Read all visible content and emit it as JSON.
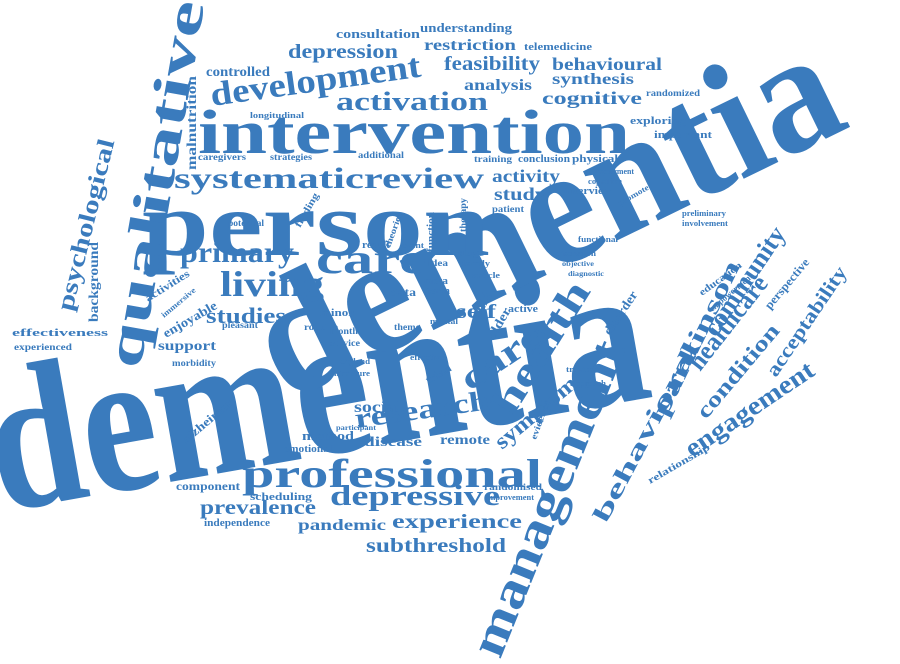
{
  "theme": {
    "word_color": "#3a7bbd",
    "background": "#ffffff"
  },
  "words": [
    "dementia",
    "dementia",
    "person",
    "intervention",
    "management",
    "qualitative",
    "professional",
    "health",
    "carer",
    "care",
    "living",
    "development",
    "systematicreview",
    "activation",
    "depressive",
    "primary",
    "research",
    "community",
    "healthcare",
    "parkinson",
    "engagement",
    "behavioral",
    "symptom",
    "psychological",
    "studies",
    "acceptability",
    "condition",
    "prevalence",
    "experience",
    "subthreshold",
    "pandemic",
    "depression",
    "feasibility",
    "restriction",
    "consultation",
    "understanding",
    "telemedicine",
    "behavioural",
    "synthesis",
    "cognitive",
    "analysis",
    "activity",
    "study",
    "self",
    "malnutrition",
    "controlled",
    "background",
    "effectiveness",
    "support",
    "enjoyable",
    "social",
    "method",
    "disease",
    "remote",
    "component",
    "alzheimer",
    "scheduling",
    "independence",
    "activities",
    "exploring",
    "important",
    "randomized",
    "interview",
    "physical",
    "conclusion",
    "training",
    "additional",
    "strategies",
    "caregivers",
    "longitudinal",
    "emotional",
    "morbidity",
    "experienced",
    "immersive",
    "pleasant",
    "potential",
    "finding",
    "minor",
    "routine",
    "result",
    "data",
    "mild",
    "older",
    "active",
    "triad",
    "theme",
    "disorder",
    "education",
    "perspective",
    "relationship",
    "empowerment",
    "improvement",
    "randomised",
    "evidence",
    "treatment",
    "approach",
    "preliminary",
    "involvement",
    "promote",
    "cognition",
    "impairment",
    "effective",
    "england",
    "literature",
    "service",
    "month",
    "meta",
    "term",
    "stage",
    "family",
    "idea",
    "article",
    "mental",
    "therapy",
    "function",
    "theories",
    "event",
    "patient",
    "participant",
    "objective",
    "diagnostic",
    "discussion",
    "functional"
  ]
}
